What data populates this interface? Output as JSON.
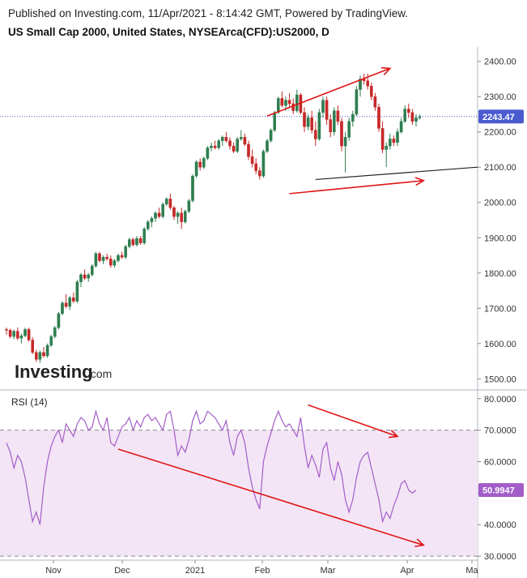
{
  "header": {
    "published": "Published on Investing.com, 11/Apr/2021 - 8:14:42 GMT, Powered by TradingView.",
    "title": "US Small Cap 2000, United States, NYSEArca(CFD):US2000, D"
  },
  "logo": {
    "main": "Investing",
    "suffix": ".com"
  },
  "colors": {
    "up_candle": "#2e7d4f",
    "down_candle": "#c62828",
    "rsi_line": "#a35dc9",
    "rsi_band": "#f3e5f5",
    "arrow": "#e01515",
    "current_price": "#4a5bd0"
  },
  "chart_data": [
    {
      "type": "candlestick",
      "name": "price",
      "ylim": [
        1480,
        2420
      ],
      "y_ticks": [
        "1500.00",
        "1600.00",
        "1700.00",
        "1800.00",
        "1900.00",
        "2000.00",
        "2100.00",
        "2200.00",
        "2300.00",
        "2400.00"
      ],
      "x_ticks": [
        "Nov",
        "Dec",
        "2021",
        "Feb",
        "Mar",
        "Apr",
        "Ma"
      ],
      "current_price": 2243.47,
      "current_price_label": "2243.47",
      "candles": [
        [
          1640,
          1645,
          1625,
          1638
        ],
        [
          1638,
          1642,
          1615,
          1620
        ],
        [
          1620,
          1640,
          1612,
          1635
        ],
        [
          1635,
          1646,
          1610,
          1615
        ],
        [
          1615,
          1628,
          1600,
          1622
        ],
        [
          1622,
          1645,
          1618,
          1640
        ],
        [
          1640,
          1645,
          1605,
          1610
        ],
        [
          1610,
          1618,
          1570,
          1575
        ],
        [
          1575,
          1582,
          1548,
          1555
        ],
        [
          1555,
          1580,
          1545,
          1575
        ],
        [
          1575,
          1590,
          1560,
          1565
        ],
        [
          1565,
          1600,
          1560,
          1595
        ],
        [
          1595,
          1625,
          1590,
          1620
        ],
        [
          1620,
          1650,
          1615,
          1645
        ],
        [
          1645,
          1690,
          1640,
          1685
        ],
        [
          1685,
          1720,
          1680,
          1715
        ],
        [
          1715,
          1740,
          1700,
          1705
        ],
        [
          1705,
          1735,
          1695,
          1730
        ],
        [
          1730,
          1745,
          1715,
          1720
        ],
        [
          1720,
          1780,
          1715,
          1775
        ],
        [
          1775,
          1800,
          1760,
          1795
        ],
        [
          1795,
          1810,
          1780,
          1785
        ],
        [
          1785,
          1800,
          1775,
          1795
        ],
        [
          1795,
          1825,
          1790,
          1820
        ],
        [
          1820,
          1860,
          1815,
          1855
        ],
        [
          1855,
          1860,
          1830,
          1835
        ],
        [
          1835,
          1850,
          1825,
          1845
        ],
        [
          1845,
          1855,
          1835,
          1840
        ],
        [
          1840,
          1850,
          1815,
          1822
        ],
        [
          1822,
          1840,
          1815,
          1835
        ],
        [
          1835,
          1855,
          1830,
          1850
        ],
        [
          1850,
          1860,
          1840,
          1845
        ],
        [
          1845,
          1880,
          1840,
          1875
        ],
        [
          1875,
          1900,
          1870,
          1895
        ],
        [
          1895,
          1900,
          1875,
          1880
        ],
        [
          1880,
          1905,
          1875,
          1898
        ],
        [
          1898,
          1905,
          1880,
          1885
        ],
        [
          1885,
          1930,
          1880,
          1925
        ],
        [
          1925,
          1950,
          1920,
          1945
        ],
        [
          1945,
          1960,
          1930,
          1955
        ],
        [
          1955,
          1975,
          1945,
          1970
        ],
        [
          1970,
          1985,
          1955,
          1960
        ],
        [
          1960,
          2000,
          1955,
          1995
        ],
        [
          1995,
          2015,
          1990,
          2010
        ],
        [
          2010,
          2025,
          1980,
          1985
        ],
        [
          1985,
          1990,
          1950,
          1960
        ],
        [
          1960,
          1975,
          1940,
          1970
        ],
        [
          1970,
          1985,
          1925,
          1945
        ],
        [
          1945,
          1980,
          1940,
          1975
        ],
        [
          1975,
          2010,
          1970,
          2005
        ],
        [
          2005,
          2080,
          2000,
          2075
        ],
        [
          2075,
          2120,
          2070,
          2115
        ],
        [
          2115,
          2125,
          2090,
          2100
        ],
        [
          2100,
          2130,
          2095,
          2125
        ],
        [
          2125,
          2160,
          2120,
          2155
        ],
        [
          2155,
          2170,
          2145,
          2160
        ],
        [
          2160,
          2175,
          2150,
          2155
        ],
        [
          2155,
          2180,
          2150,
          2175
        ],
        [
          2175,
          2190,
          2160,
          2185
        ],
        [
          2185,
          2200,
          2170,
          2175
        ],
        [
          2175,
          2185,
          2150,
          2160
        ],
        [
          2160,
          2170,
          2140,
          2145
        ],
        [
          2145,
          2185,
          2140,
          2180
        ],
        [
          2180,
          2205,
          2175,
          2185
        ],
        [
          2185,
          2195,
          2160,
          2165
        ],
        [
          2165,
          2175,
          2120,
          2130
        ],
        [
          2130,
          2150,
          2100,
          2110
        ],
        [
          2110,
          2125,
          2080,
          2090
        ],
        [
          2090,
          2100,
          2065,
          2075
        ],
        [
          2075,
          2150,
          2070,
          2145
        ],
        [
          2145,
          2180,
          2140,
          2175
        ],
        [
          2175,
          2210,
          2170,
          2205
        ],
        [
          2205,
          2260,
          2200,
          2255
        ],
        [
          2255,
          2300,
          2250,
          2295
        ],
        [
          2295,
          2315,
          2270,
          2275
        ],
        [
          2275,
          2300,
          2260,
          2290
        ],
        [
          2290,
          2310,
          2270,
          2280
        ],
        [
          2280,
          2295,
          2250,
          2260
        ],
        [
          2260,
          2320,
          2255,
          2305
        ],
        [
          2305,
          2310,
          2250,
          2255
        ],
        [
          2255,
          2270,
          2200,
          2215
        ],
        [
          2215,
          2250,
          2205,
          2240
        ],
        [
          2240,
          2260,
          2195,
          2205
        ],
        [
          2205,
          2230,
          2160,
          2180
        ],
        [
          2180,
          2265,
          2175,
          2255
        ],
        [
          2255,
          2300,
          2240,
          2290
        ],
        [
          2290,
          2300,
          2220,
          2235
        ],
        [
          2235,
          2250,
          2185,
          2200
        ],
        [
          2200,
          2270,
          2190,
          2260
        ],
        [
          2260,
          2275,
          2220,
          2230
        ],
        [
          2230,
          2240,
          2145,
          2160
        ],
        [
          2160,
          2200,
          2085,
          2185
        ],
        [
          2185,
          2240,
          2175,
          2230
        ],
        [
          2230,
          2260,
          2215,
          2250
        ],
        [
          2250,
          2330,
          2245,
          2320
        ],
        [
          2320,
          2360,
          2300,
          2350
        ],
        [
          2350,
          2365,
          2335,
          2345
        ],
        [
          2345,
          2365,
          2320,
          2330
        ],
        [
          2330,
          2340,
          2290,
          2300
        ],
        [
          2300,
          2310,
          2260,
          2270
        ],
        [
          2270,
          2280,
          2200,
          2210
        ],
        [
          2210,
          2230,
          2140,
          2150
        ],
        [
          2150,
          2170,
          2100,
          2160
        ],
        [
          2160,
          2195,
          2150,
          2180
        ],
        [
          2180,
          2190,
          2160,
          2170
        ],
        [
          2170,
          2210,
          2160,
          2200
        ],
        [
          2200,
          2240,
          2195,
          2230
        ],
        [
          2230,
          2275,
          2225,
          2265
        ],
        [
          2265,
          2280,
          2240,
          2255
        ],
        [
          2255,
          2265,
          2220,
          2230
        ],
        [
          2230,
          2250,
          2215,
          2240
        ],
        [
          2240,
          2250,
          2235,
          2243
        ]
      ],
      "trendline": {
        "from": [
          83,
          2065
        ],
        "to": [
          150,
          2120
        ]
      },
      "arrows": [
        {
          "from": [
            70,
            2245
          ],
          "to": [
            103,
            2380
          ]
        },
        {
          "from": [
            76,
            2025
          ],
          "to": [
            112,
            2062
          ]
        }
      ]
    },
    {
      "type": "line",
      "name": "rsi",
      "label": "RSI (14)",
      "ylim": [
        29,
        82
      ],
      "y_ticks": [
        "30.0000",
        "40.0000",
        "50.0000",
        "60.0000",
        "70.0000",
        "80.0000"
      ],
      "band": [
        30,
        70
      ],
      "current_label": "50.9947",
      "values": [
        66,
        63,
        58,
        62,
        60,
        55,
        48,
        41,
        44,
        40,
        52,
        60,
        65,
        68,
        70,
        66,
        72,
        70,
        68,
        72,
        74,
        73,
        70,
        71,
        76,
        72,
        70,
        74,
        66,
        65,
        68,
        71,
        72,
        74,
        70,
        73,
        71,
        74,
        75,
        73,
        74,
        72,
        70,
        75,
        76,
        70,
        62,
        65,
        63,
        67,
        73,
        76,
        72,
        73,
        76,
        75,
        74,
        72,
        70,
        73,
        66,
        62,
        68,
        70,
        66,
        58,
        52,
        48,
        45,
        60,
        65,
        69,
        73,
        76,
        73,
        71,
        72,
        70,
        68,
        74,
        65,
        58,
        62,
        59,
        55,
        64,
        66,
        58,
        54,
        60,
        56,
        48,
        44,
        48,
        55,
        60,
        62,
        63,
        58,
        53,
        48,
        41,
        44,
        42,
        46,
        49,
        53,
        54,
        51,
        50,
        51
      ],
      "arrows": [
        {
          "from": [
            30,
            64
          ],
          "to": [
            112,
            33.5
          ]
        },
        {
          "from": [
            81,
            78
          ],
          "to": [
            105,
            68
          ]
        }
      ]
    }
  ]
}
